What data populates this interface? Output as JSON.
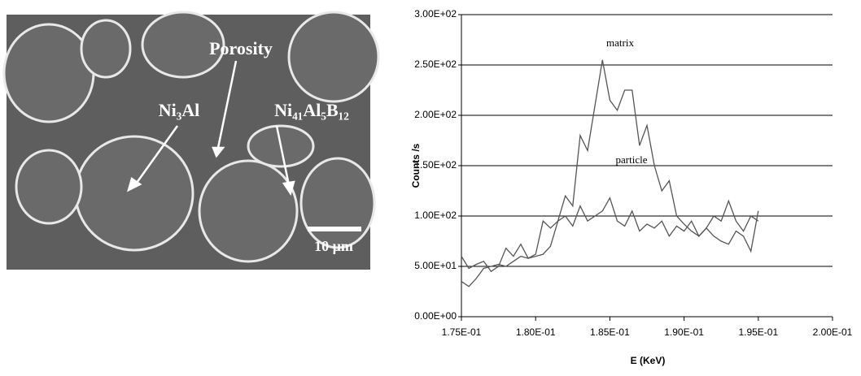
{
  "micrograph": {
    "labels": [
      "Porosity",
      "Ni₃Al",
      "Ni₄₁Al₅B₁₂"
    ],
    "scale_bar": "10 µm"
  },
  "chart_data": {
    "type": "line",
    "x_label": "E (KeV)",
    "y_label": "Counts /s",
    "x": [
      0.175,
      0.1755,
      0.176,
      0.1765,
      0.177,
      0.1775,
      0.178,
      0.1785,
      0.179,
      0.1795,
      0.18,
      0.1805,
      0.181,
      0.1815,
      0.182,
      0.1825,
      0.183,
      0.1835,
      0.184,
      0.1845,
      0.185,
      0.1855,
      0.186,
      0.1865,
      0.187,
      0.1875,
      0.188,
      0.1885,
      0.189,
      0.1895,
      0.19,
      0.1905,
      0.191,
      0.1915,
      0.192,
      0.1925,
      0.193,
      0.1935,
      0.194,
      0.1945,
      0.195
    ],
    "series": [
      {
        "name": "matrix",
        "color": "#555555",
        "values": [
          35,
          30,
          38,
          48,
          50,
          52,
          50,
          55,
          60,
          58,
          60,
          62,
          70,
          95,
          120,
          110,
          180,
          165,
          210,
          255,
          215,
          205,
          225,
          225,
          170,
          190,
          150,
          125,
          135,
          100,
          92,
          85,
          80,
          88,
          80,
          75,
          72,
          85,
          80,
          65,
          105
        ]
      },
      {
        "name": "particle",
        "color": "#555555",
        "values": [
          60,
          48,
          52,
          55,
          45,
          50,
          68,
          60,
          72,
          58,
          62,
          95,
          88,
          95,
          100,
          90,
          110,
          95,
          100,
          105,
          118,
          95,
          90,
          105,
          85,
          92,
          88,
          95,
          80,
          90,
          85,
          95,
          80,
          88,
          100,
          95,
          115,
          95,
          85,
          100,
          95
        ]
      }
    ],
    "xlim": [
      0.175,
      0.2
    ],
    "xticks": [
      {
        "value": 0.175,
        "label": "1.75E-01"
      },
      {
        "value": 0.18,
        "label": "1.80E-01"
      },
      {
        "value": 0.185,
        "label": "1.85E-01"
      },
      {
        "value": 0.19,
        "label": "1.90E-01"
      },
      {
        "value": 0.195,
        "label": "1.95E-01"
      },
      {
        "value": 0.2,
        "label": "2.00E-01"
      }
    ],
    "ylim": [
      0,
      300
    ],
    "yticks": [
      {
        "value": 0,
        "label": "0.00E+00"
      },
      {
        "value": 50,
        "label": "5.00E+01"
      },
      {
        "value": 100,
        "label": "1.00E+02"
      },
      {
        "value": 150,
        "label": "1.50E+02"
      },
      {
        "value": 200,
        "label": "2.00E+02"
      },
      {
        "value": 250,
        "label": "2.50E+02"
      },
      {
        "value": 300,
        "label": "3.00E+02"
      }
    ],
    "grid": true
  }
}
